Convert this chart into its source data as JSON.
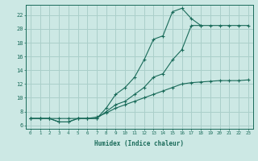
{
  "xlabel": "Humidex (Indice chaleur)",
  "xlim": [
    -0.5,
    23.5
  ],
  "ylim": [
    5.5,
    23.5
  ],
  "yticks": [
    6,
    8,
    10,
    12,
    14,
    16,
    18,
    20,
    22
  ],
  "xticks": [
    0,
    1,
    2,
    3,
    4,
    5,
    6,
    7,
    8,
    9,
    10,
    11,
    12,
    13,
    14,
    15,
    16,
    17,
    18,
    19,
    20,
    21,
    22,
    23
  ],
  "bg_color": "#cce8e4",
  "grid_color": "#aacfca",
  "line_color": "#1a6b5a",
  "line1_x": [
    0,
    1,
    2,
    3,
    4,
    5,
    6,
    7,
    8,
    9,
    10,
    11,
    12,
    13,
    14,
    15,
    16,
    17,
    18
  ],
  "line1_y": [
    7.0,
    7.0,
    7.0,
    6.5,
    6.5,
    7.0,
    7.0,
    7.0,
    8.5,
    10.5,
    11.5,
    13.0,
    15.5,
    18.5,
    19.0,
    22.5,
    23.0,
    21.5,
    20.5
  ],
  "line2_x": [
    0,
    1,
    2,
    3,
    4,
    5,
    6,
    7,
    8,
    9,
    10,
    11,
    12,
    13,
    14,
    15,
    16,
    17,
    18,
    19,
    20,
    21,
    22,
    23
  ],
  "line2_y": [
    7.0,
    7.0,
    7.0,
    6.5,
    6.5,
    7.0,
    7.0,
    7.0,
    8.0,
    9.0,
    9.5,
    10.5,
    11.5,
    13.0,
    13.5,
    15.5,
    17.0,
    20.5,
    20.5,
    20.5,
    20.5,
    20.5,
    20.5,
    20.5
  ],
  "line3_x": [
    0,
    1,
    2,
    3,
    4,
    5,
    6,
    7,
    8,
    9,
    10,
    11,
    12,
    13,
    14,
    15,
    16,
    17,
    18,
    19,
    20,
    21,
    22,
    23
  ],
  "line3_y": [
    7.0,
    7.0,
    7.0,
    7.0,
    7.0,
    7.0,
    7.0,
    7.2,
    7.8,
    8.5,
    9.0,
    9.5,
    10.0,
    10.5,
    11.0,
    11.5,
    12.0,
    12.2,
    12.3,
    12.4,
    12.5,
    12.5,
    12.5,
    12.6
  ]
}
